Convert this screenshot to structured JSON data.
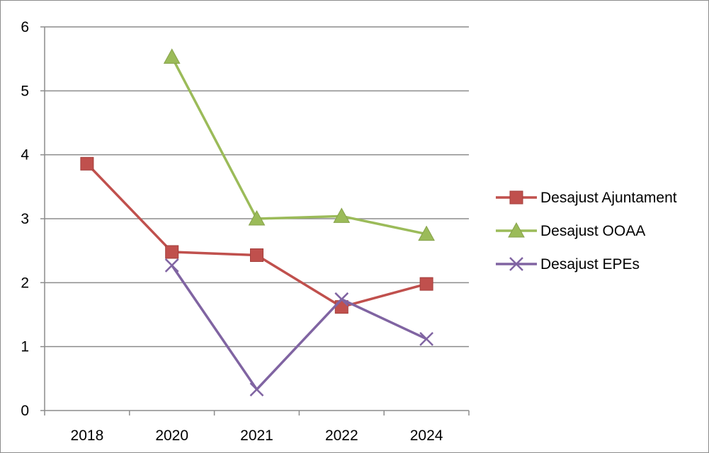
{
  "chart_data": {
    "type": "line",
    "title": "",
    "xlabel": "",
    "ylabel": "",
    "categories": [
      "2018",
      "2020",
      "2021",
      "2022",
      "2024"
    ],
    "ylim": [
      0,
      6
    ],
    "yticks": [
      "0",
      "1",
      "2",
      "3",
      "4",
      "5",
      "6"
    ],
    "grid": true,
    "legend_position": "right",
    "series": [
      {
        "name": "Desajust Ajuntament",
        "values": [
          3.86,
          2.48,
          2.43,
          1.62,
          1.98
        ],
        "color": "#c0504d",
        "marker": "square"
      },
      {
        "name": "Desajust OOAA",
        "values": [
          null,
          5.53,
          3.0,
          3.04,
          2.76
        ],
        "color": "#9bbb59",
        "marker": "triangle"
      },
      {
        "name": "Desajust EPEs",
        "values": [
          null,
          2.27,
          0.33,
          1.74,
          1.12
        ],
        "color": "#8064a2",
        "marker": "x"
      }
    ]
  }
}
